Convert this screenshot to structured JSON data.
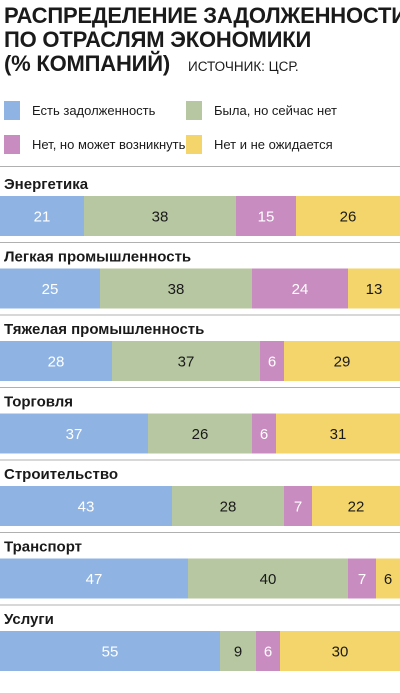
{
  "colors": {
    "series": [
      "#8fb4e3",
      "#b7c7a2",
      "#c98cc0",
      "#f3d56b"
    ],
    "label_light": "#ffffff",
    "label_dark": "#1a1a1a"
  },
  "chart_data": {
    "type": "bar",
    "orientation": "horizontal",
    "stacked": true,
    "title_lines": [
      "РАСПРЕДЕЛЕНИЕ ЗАДОЛЖЕННОСТИ",
      "ПО ОТРАСЛЯМ ЭКОНОМИКИ",
      "(% КОМПАНИЙ)"
    ],
    "source": "ИСТОЧНИК: ЦСР.",
    "legend_placement": "top",
    "categories": [
      "Энергетика",
      "Легкая промышленность",
      "Тяжелая промышленность",
      "Торговля",
      "Строительство",
      "Транспорт",
      "Услуги"
    ],
    "series": [
      {
        "name": "Есть задолженность",
        "values": [
          21,
          25,
          28,
          37,
          43,
          47,
          55
        ]
      },
      {
        "name": "Была, но сейчас нет",
        "values": [
          38,
          38,
          37,
          26,
          28,
          40,
          9
        ]
      },
      {
        "name": "Нет, но может возникнуть",
        "values": [
          15,
          24,
          6,
          6,
          7,
          7,
          6
        ]
      },
      {
        "name": "Нет и не ожидается",
        "values": [
          26,
          13,
          29,
          31,
          22,
          6,
          30
        ]
      }
    ],
    "xlim": [
      0,
      100
    ]
  }
}
